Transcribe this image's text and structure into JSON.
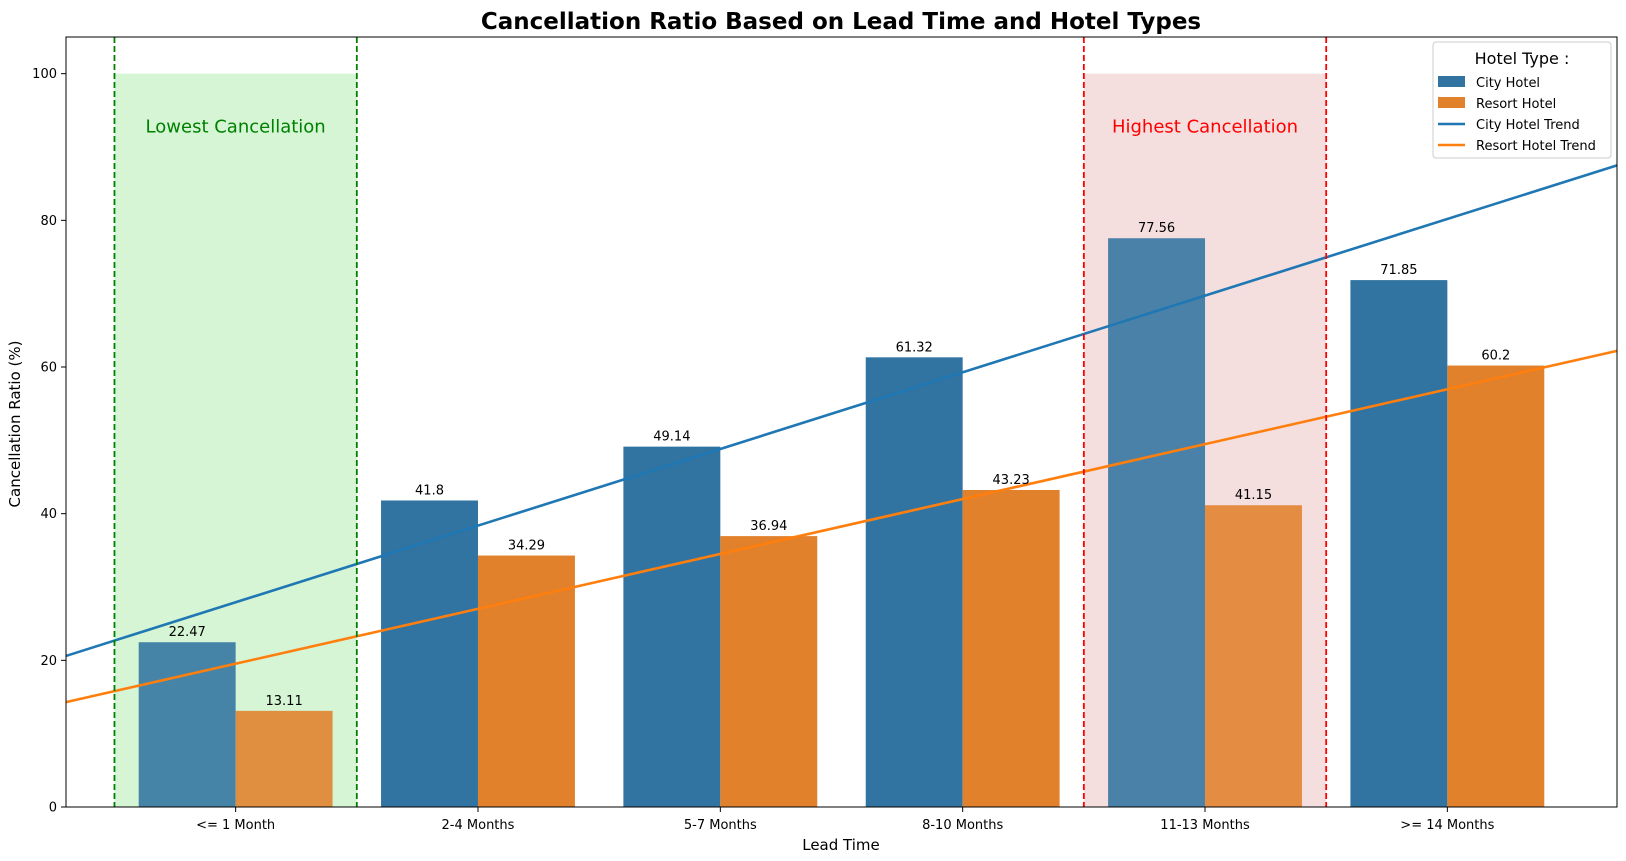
{
  "chart_data": {
    "type": "bar",
    "title": "Cancellation Ratio Based on Lead Time and Hotel Types",
    "xlabel": "Lead Time",
    "ylabel": "Cancellation Ratio (%)",
    "ylim": [
      0,
      105
    ],
    "yticks": [
      0,
      20,
      40,
      60,
      80,
      100
    ],
    "grid": false,
    "categories": [
      "<= 1 Month",
      "2-4 Months",
      "5-7 Months",
      "8-10 Months",
      "11-13 Months",
      ">= 14 Months"
    ],
    "series": [
      {
        "name": "City Hotel",
        "color": "#3274a1",
        "values": [
          22.47,
          41.8,
          49.14,
          61.32,
          77.56,
          71.85
        ],
        "labels": [
          "22.47",
          "41.8",
          "49.14",
          "61.32",
          "77.56",
          "71.85"
        ]
      },
      {
        "name": "Resort Hotel",
        "color": "#e1812c",
        "values": [
          13.11,
          34.29,
          36.94,
          43.23,
          41.15,
          60.2
        ],
        "labels": [
          "13.11",
          "34.29",
          "36.94",
          "43.23",
          "41.15",
          "60.2"
        ]
      }
    ],
    "trends": [
      {
        "name": "City Hotel Trend",
        "color": "#1f77b4",
        "from": [
          -0.7,
          20.6
        ],
        "to": [
          5.7,
          87.5
        ]
      },
      {
        "name": "Resort Hotel Trend",
        "color": "#ff7f0e",
        "from": [
          -0.7,
          14.3
        ],
        "to": [
          5.7,
          62.2
        ]
      }
    ],
    "highlights": [
      {
        "label": "Lowest Cancellation",
        "category_index": 0,
        "fill": "#d5f5d5",
        "line_color": "#008000",
        "text_color": "#008000",
        "top_value": 100
      },
      {
        "label": "Highest Cancellation",
        "category_index": 4,
        "fill": "#f4dede",
        "line_color": "#ff0000",
        "text_color": "#ff0000",
        "top_value": 100
      }
    ],
    "legend": {
      "title": "Hotel Type :",
      "position": "top-right",
      "entries": [
        {
          "label": "City Hotel",
          "kind": "patch",
          "color": "#3274a1"
        },
        {
          "label": "Resort Hotel",
          "kind": "patch",
          "color": "#e1812c"
        },
        {
          "label": "City Hotel Trend",
          "kind": "line",
          "color": "#1f77b4"
        },
        {
          "label": "Resort Hotel Trend",
          "kind": "line",
          "color": "#ff7f0e"
        }
      ]
    }
  }
}
